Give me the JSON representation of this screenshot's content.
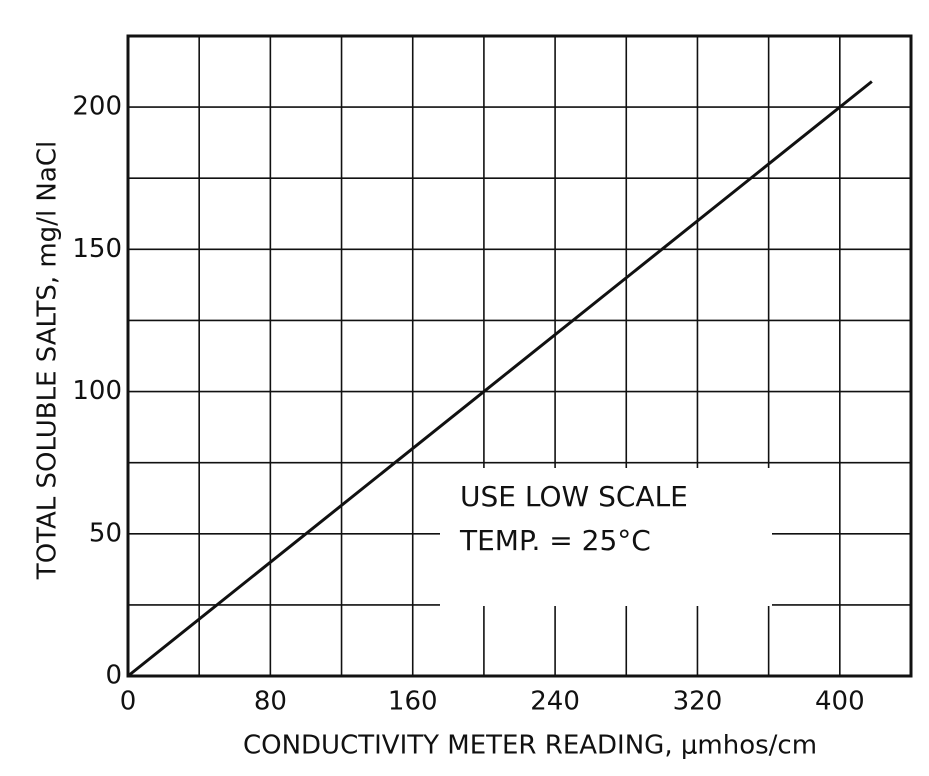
{
  "chart_data": {
    "type": "line",
    "xlabel": "CONDUCTIVITY METER READING, μmhos/cm",
    "ylabel": "TOTAL SOLUBLE SALTS, mg/l NaCl",
    "annotations": [
      "USE LOW SCALE",
      "TEMP. = 25°C"
    ],
    "x": [
      0,
      418
    ],
    "series": [
      {
        "name": "NaCl",
        "color": "#111111",
        "values": [
          0,
          209
        ]
      }
    ],
    "xlim": [
      0,
      440
    ],
    "ylim": [
      0,
      225
    ],
    "xticks": [
      0,
      80,
      160,
      240,
      320,
      400
    ],
    "yticks": [
      0,
      50,
      100,
      150,
      200
    ],
    "xminor": [
      40,
      120,
      200,
      280,
      360,
      440
    ],
    "yminor": [
      25,
      75,
      125,
      175,
      225
    ],
    "grid": true
  }
}
